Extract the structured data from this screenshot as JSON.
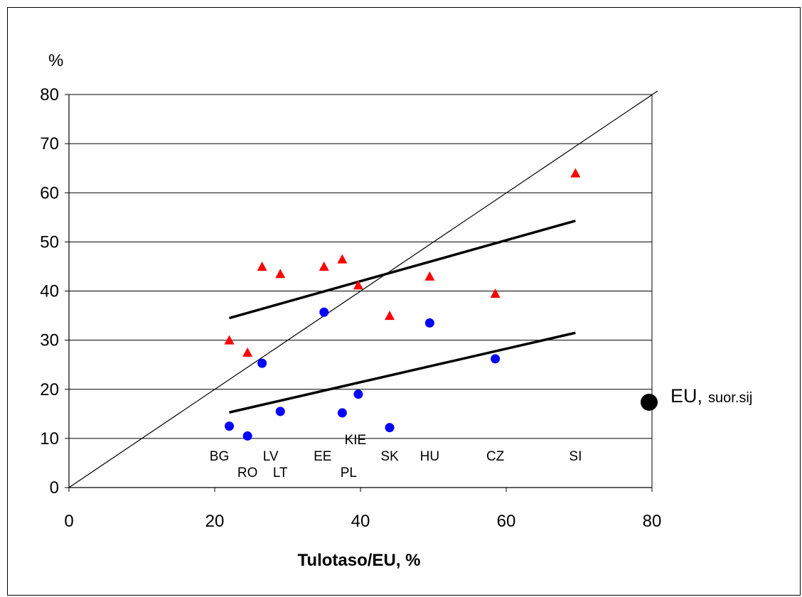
{
  "chart_data": {
    "type": "scatter",
    "title": "",
    "xlabel": "Tulotaso/EU, %",
    "ylabel": "%",
    "xlim": [
      0,
      80
    ],
    "ylim": [
      0,
      80
    ],
    "xticks": [
      0,
      20,
      40,
      60,
      80
    ],
    "yticks": [
      0,
      10,
      20,
      30,
      40,
      50,
      60,
      70,
      80
    ],
    "grid": "horizontal",
    "countries": [
      {
        "code": "BG",
        "x": 22,
        "triangle": 30,
        "circle": 12.5
      },
      {
        "code": "RO",
        "x": 24.5,
        "triangle": 27.5,
        "circle": 10.5
      },
      {
        "code": "LV",
        "x": 26.5,
        "triangle": 45,
        "circle": 25.3
      },
      {
        "code": "LT",
        "x": 29,
        "triangle": 43.5,
        "circle": 15.5
      },
      {
        "code": "EE",
        "x": 35,
        "triangle": 45,
        "circle": 35.7
      },
      {
        "code": "PL",
        "x": 37.5,
        "triangle": 46.5,
        "circle": 15.2
      },
      {
        "code": "KIE",
        "x": 39.7,
        "triangle": 41.2,
        "circle": 19
      },
      {
        "code": "SK",
        "x": 44,
        "triangle": 35,
        "circle": 12.2
      },
      {
        "code": "HU",
        "x": 49.5,
        "triangle": 43,
        "circle": 33.5
      },
      {
        "code": "CZ",
        "x": 58.5,
        "triangle": 39.5,
        "circle": 26.2
      },
      {
        "code": "SI",
        "x": 69.5,
        "triangle": 64,
        "circle": null
      }
    ],
    "trendlines": [
      {
        "series": "triangle",
        "x": [
          22,
          69.5
        ],
        "y": [
          34.5,
          54.3
        ]
      },
      {
        "series": "circle",
        "x": [
          22,
          69.5
        ],
        "y": [
          15.3,
          31.5
        ]
      }
    ],
    "diagonal": {
      "x": [
        0,
        80
      ],
      "y": [
        0,
        80
      ]
    },
    "eu_marker": {
      "label": "EU,",
      "sublabel": "suor.sij",
      "y": 17.8
    },
    "colors": {
      "triangle": "#ff0000",
      "circle": "#0000ff",
      "line": "#000000",
      "grid": "#000000"
    }
  }
}
